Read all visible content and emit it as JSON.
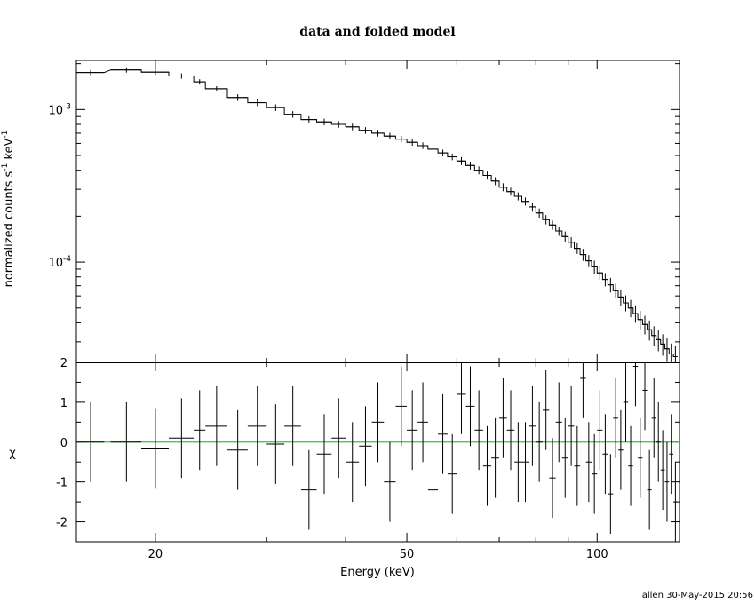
{
  "title": "data and folded model",
  "footer": "allen 30-May-2015 20:56",
  "chart_data": [
    {
      "type": "step",
      "panel": "top",
      "ylabel_parts": {
        "a": "normalized counts s",
        "b": "-1",
        "c": " keV",
        "d": "-1"
      },
      "x_scale": "log",
      "y_scale": "log",
      "xlim": [
        15,
        135
      ],
      "ylim": [
        2.2e-05,
        0.0021
      ],
      "ytick_labels": [
        {
          "value": 0.001,
          "mant": "10",
          "exp": "-3"
        },
        {
          "value": 0.0001,
          "mant": "10",
          "exp": "-4"
        }
      ],
      "grid": false,
      "series": [
        {
          "x": [
            15.8,
            18.0,
            20.0,
            22.0,
            23.5,
            25.0,
            27.0,
            29.0,
            31.0,
            33.0,
            35.0,
            37.0,
            39.0,
            41.0,
            43.0,
            45.0,
            47.0,
            49.0,
            51.0,
            53.0,
            55.0,
            57.0,
            59.0,
            61.0,
            63.0,
            65.0,
            67.0,
            69.0,
            71.0,
            73.0,
            75.0,
            77.0,
            79.0,
            81.0,
            83.0,
            85.0,
            87.0,
            89.0,
            91.0,
            93.0,
            95.0,
            97.0,
            99.0,
            101.0,
            103.0,
            105.0,
            107.0,
            109.0,
            111.0,
            113.0,
            115.0,
            117.0,
            119.0,
            121.0,
            123.0,
            125.0,
            127.0,
            129.0,
            131.0,
            133.0
          ],
          "y": [
            0.00175,
            0.00182,
            0.00176,
            0.00166,
            0.00152,
            0.00137,
            0.0012,
            0.00111,
            0.00103,
            0.00093,
            0.00086,
            0.00083,
            0.0008,
            0.00077,
            0.00073,
            0.0007,
            0.00067,
            0.00064,
            0.00061,
            0.00058,
            0.00055,
            0.00052,
            0.00049,
            0.00046,
            0.00043,
            0.0004,
            0.00037,
            0.00034,
            0.00031,
            0.00029,
            0.00027,
            0.00025,
            0.00023,
            0.00021,
            0.00019,
            0.000175,
            0.00016,
            0.000147,
            0.000135,
            0.000123,
            0.000112,
            0.000102,
            9.3e-05,
            8.5e-05,
            7.7e-05,
            7.1e-05,
            6.5e-05,
            5.9e-05,
            5.4e-05,
            5e-05,
            4.6e-05,
            4.2e-05,
            3.9e-05,
            3.6e-05,
            3.3e-05,
            3.1e-05,
            2.9e-05,
            2.7e-05,
            2.5e-05,
            2.4e-05
          ],
          "xerr": [
            0.8,
            1.0,
            1.0,
            1.0,
            0.5,
            1.0,
            1.0,
            1.0,
            1.0,
            1.0,
            1.0,
            1.0,
            1.0,
            1.0,
            1.0,
            1.0,
            1.0,
            1.0,
            1.0,
            1.0,
            1.0,
            1.0,
            1.0,
            1.0,
            1.0,
            1.0,
            1.0,
            1.0,
            1.0,
            1.0,
            1.0,
            1.0,
            1.0,
            1.0,
            1.0,
            1.0,
            1.0,
            1.0,
            1.0,
            1.0,
            1.0,
            1.0,
            1.0,
            1.0,
            1.0,
            1.0,
            1.0,
            1.0,
            1.0,
            1.0,
            1.0,
            1.0,
            1.0,
            1.0,
            1.0,
            1.0,
            1.0,
            1.0,
            1.0,
            1.0
          ],
          "yerr_frac": [
            0.04,
            0.04,
            0.04,
            0.04,
            0.04,
            0.04,
            0.05,
            0.05,
            0.05,
            0.05,
            0.05,
            0.05,
            0.05,
            0.05,
            0.05,
            0.05,
            0.05,
            0.05,
            0.05,
            0.05,
            0.05,
            0.05,
            0.05,
            0.06,
            0.06,
            0.06,
            0.06,
            0.06,
            0.06,
            0.06,
            0.06,
            0.06,
            0.07,
            0.07,
            0.07,
            0.07,
            0.07,
            0.08,
            0.08,
            0.08,
            0.09,
            0.09,
            0.1,
            0.1,
            0.1,
            0.11,
            0.11,
            0.12,
            0.12,
            0.13,
            0.13,
            0.14,
            0.14,
            0.15,
            0.15,
            0.16,
            0.16,
            0.17,
            0.17,
            0.18
          ]
        }
      ]
    },
    {
      "type": "residual",
      "panel": "bottom",
      "ylabel": "χ",
      "xlabel": "Energy (keV)",
      "x_scale": "log",
      "xlim": [
        15,
        135
      ],
      "ylim": [
        -2.5,
        2.0
      ],
      "yticks": [
        -2,
        -1,
        0,
        1,
        2
      ],
      "xticks": [
        20,
        50,
        100
      ],
      "zero_line_color": "#3cc03c",
      "x": [
        15.8,
        18.0,
        20.0,
        22.0,
        23.5,
        25.0,
        27.0,
        29.0,
        31.0,
        33.0,
        35.0,
        37.0,
        39.0,
        41.0,
        43.0,
        45.0,
        47.0,
        49.0,
        51.0,
        53.0,
        55.0,
        57.0,
        59.0,
        61.0,
        63.0,
        65.0,
        67.0,
        69.0,
        71.0,
        73.0,
        75.0,
        77.0,
        79.0,
        81.0,
        83.0,
        85.0,
        87.0,
        89.0,
        91.0,
        93.0,
        95.0,
        97.0,
        99.0,
        101.0,
        103.0,
        105.0,
        107.0,
        109.0,
        111.0,
        113.0,
        115.0,
        117.0,
        119.0,
        121.0,
        123.0,
        125.0,
        127.0,
        129.0,
        131.0,
        133.0
      ],
      "xerr": [
        0.8,
        1.0,
        1.0,
        1.0,
        0.5,
        1.0,
        1.0,
        1.0,
        1.0,
        1.0,
        1.0,
        1.0,
        1.0,
        1.0,
        1.0,
        1.0,
        1.0,
        1.0,
        1.0,
        1.0,
        1.0,
        1.0,
        1.0,
        1.0,
        1.0,
        1.0,
        1.0,
        1.0,
        1.0,
        1.0,
        1.0,
        1.0,
        1.0,
        1.0,
        1.0,
        1.0,
        1.0,
        1.0,
        1.0,
        1.0,
        1.0,
        1.0,
        1.0,
        1.0,
        1.0,
        1.0,
        1.0,
        1.0,
        1.0,
        1.0,
        1.0,
        1.0,
        1.0,
        1.0,
        1.0,
        1.0,
        1.0,
        1.0,
        1.0,
        1.0
      ],
      "values": [
        0.0,
        0.0,
        -0.15,
        0.1,
        0.3,
        0.4,
        -0.2,
        0.4,
        -0.05,
        0.4,
        -1.2,
        -0.3,
        0.1,
        -0.5,
        -0.1,
        0.5,
        -1.0,
        0.9,
        0.3,
        0.5,
        -1.2,
        0.2,
        -0.8,
        1.2,
        0.9,
        0.3,
        -0.6,
        -0.4,
        0.6,
        0.3,
        -0.5,
        -0.5,
        0.4,
        0.0,
        0.8,
        -0.9,
        0.5,
        -0.4,
        0.4,
        -0.6,
        1.6,
        -0.5,
        -0.8,
        0.3,
        -0.3,
        -1.3,
        0.6,
        -0.2,
        1.0,
        -0.6,
        1.9,
        -0.4,
        1.3,
        -1.2,
        0.6,
        0.0,
        -0.7,
        -1.0,
        -0.3,
        -1.5
      ],
      "errors": [
        1.0,
        1.0,
        1.0,
        1.0,
        1.0,
        1.0,
        1.0,
        1.0,
        1.0,
        1.0,
        1.0,
        1.0,
        1.0,
        1.0,
        1.0,
        1.0,
        1.0,
        1.0,
        1.0,
        1.0,
        1.0,
        1.0,
        1.0,
        1.0,
        1.0,
        1.0,
        1.0,
        1.0,
        1.0,
        1.0,
        1.0,
        1.0,
        1.0,
        1.0,
        1.0,
        1.0,
        1.0,
        1.0,
        1.0,
        1.0,
        1.0,
        1.0,
        1.0,
        1.0,
        1.0,
        1.0,
        1.0,
        1.0,
        1.0,
        1.0,
        1.0,
        1.0,
        1.0,
        1.0,
        1.0,
        1.0,
        1.0,
        1.0,
        1.0,
        1.0
      ]
    }
  ]
}
